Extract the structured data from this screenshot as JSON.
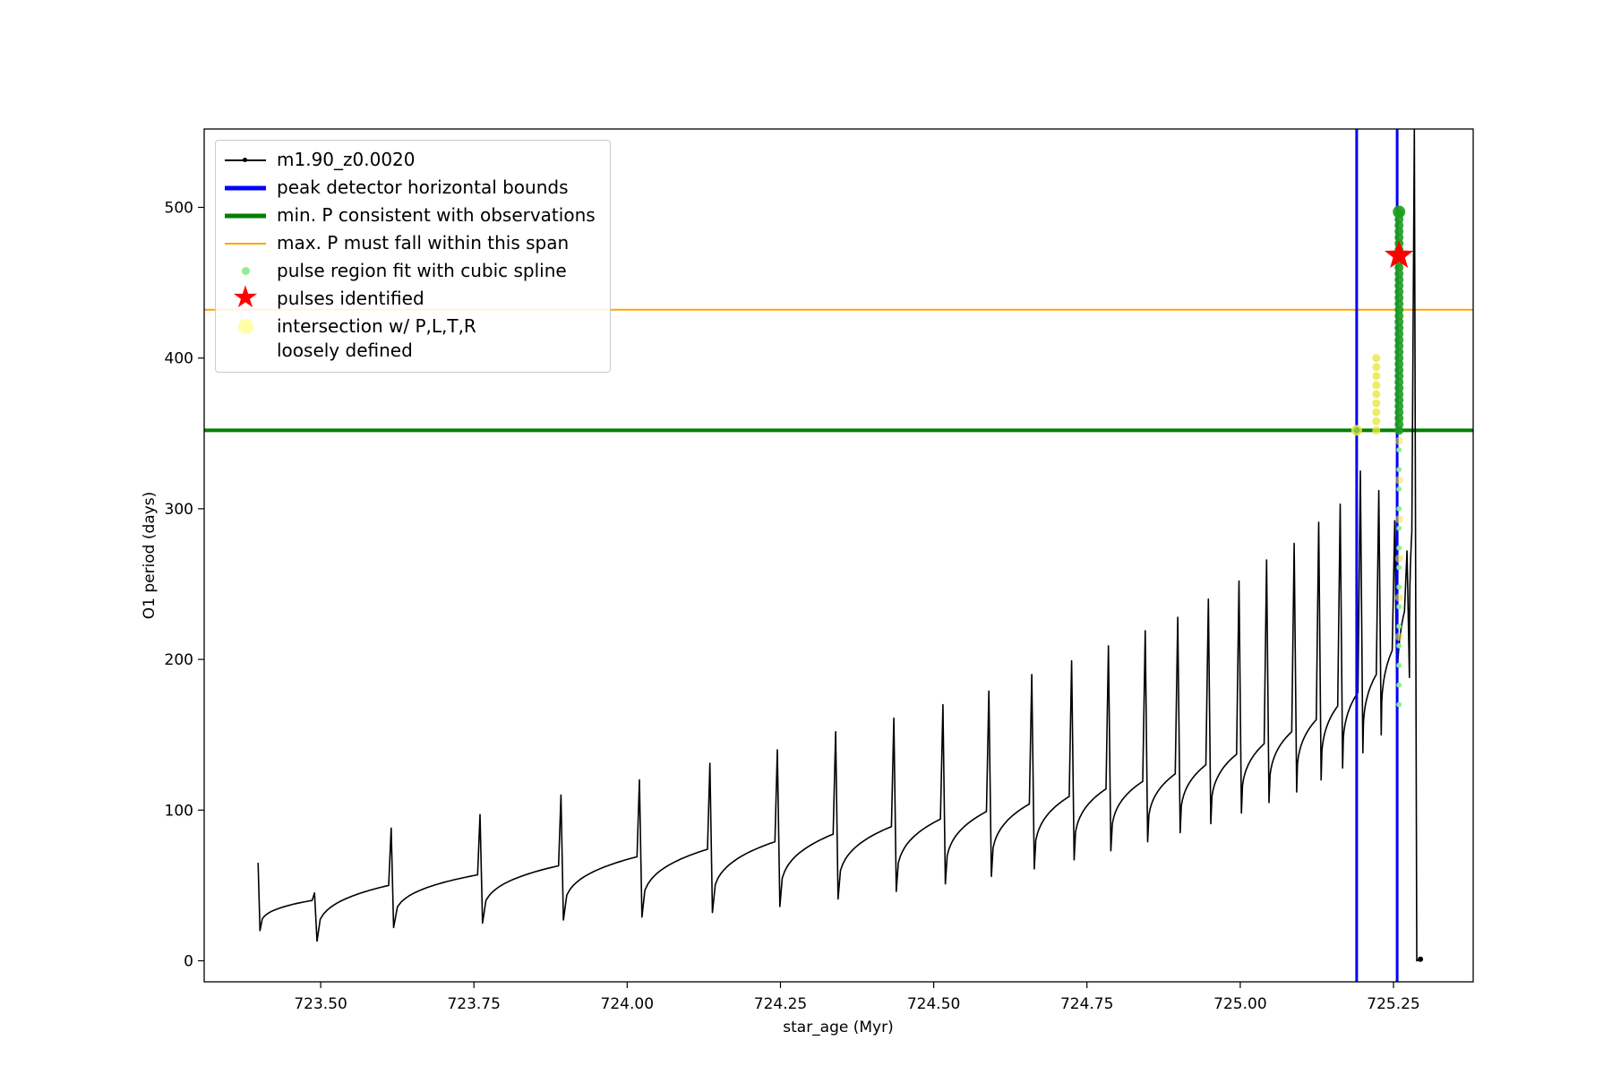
{
  "chart_data": {
    "type": "line",
    "title": "",
    "xlabel": "star_age (Myr)",
    "ylabel": "O1 period (days)",
    "xlim": [
      723.31,
      725.38
    ],
    "ylim": [
      -14,
      552
    ],
    "xticks": [
      "723.50",
      "723.75",
      "724.00",
      "724.25",
      "724.50",
      "724.75",
      "725.00",
      "725.25"
    ],
    "yticks": [
      "0",
      "100",
      "200",
      "300",
      "400",
      "500"
    ],
    "grid": false,
    "legend_position": "upper left",
    "series": [
      {
        "name": "m1.90_z0.0020",
        "color": "#000000",
        "description": "relaxation-oscillator pulse train: each pulse = [spike_x_Myr, period_before_spike, spike_peak, low_after_spike] in days",
        "start_point": {
          "x": 723.398,
          "y_top": 65,
          "y_low": 20
        },
        "pulses": [
          [
            723.49,
            40,
            45,
            13
          ],
          [
            723.615,
            50,
            88,
            22
          ],
          [
            723.76,
            57,
            97,
            25
          ],
          [
            723.892,
            63,
            110,
            27
          ],
          [
            724.02,
            69,
            120,
            29
          ],
          [
            724.135,
            74,
            131,
            32
          ],
          [
            724.245,
            79,
            140,
            36
          ],
          [
            724.34,
            84,
            152,
            41
          ],
          [
            724.435,
            89,
            161,
            46
          ],
          [
            724.515,
            94,
            170,
            51
          ],
          [
            724.59,
            99,
            179,
            56
          ],
          [
            724.66,
            104,
            190,
            61
          ],
          [
            724.725,
            109,
            199,
            67
          ],
          [
            724.785,
            114,
            209,
            73
          ],
          [
            724.845,
            119,
            219,
            79
          ],
          [
            724.898,
            124,
            228,
            85
          ],
          [
            724.948,
            130,
            240,
            91
          ],
          [
            724.998,
            137,
            252,
            98
          ],
          [
            725.043,
            144,
            266,
            105
          ],
          [
            725.088,
            152,
            277,
            112
          ],
          [
            725.128,
            160,
            291,
            120
          ],
          [
            725.163,
            169,
            303,
            128
          ],
          [
            725.196,
            178,
            325,
            138
          ],
          [
            725.226,
            190,
            312,
            150
          ],
          [
            725.252,
            206,
            292,
            165
          ],
          [
            725.272,
            232,
            272,
            188
          ],
          [
            725.284,
            285,
            552,
            0
          ]
        ],
        "tail": {
          "x": 725.294,
          "y": 1
        }
      }
    ],
    "hlines": [
      {
        "name": "max-p-span-line",
        "y": 432,
        "color": "#ffa500",
        "width": 2,
        "label": "max. P must fall within this span"
      },
      {
        "name": "min-p-observed-line",
        "y": 352,
        "color": "#008000",
        "width": 4,
        "label": "min. P consistent with observations"
      }
    ],
    "vlines": [
      {
        "name": "peak-detector-left-bound",
        "x": 725.19,
        "color": "#0000ff",
        "width": 3,
        "label": "peak detector horizontal bounds"
      },
      {
        "name": "peak-detector-right-bound",
        "x": 725.256,
        "color": "#0000ff",
        "width": 3,
        "label": "peak detector horizontal bounds"
      }
    ],
    "spline_fit": {
      "label": "pulse region fit with cubic spline",
      "x": 725.259,
      "dense": {
        "ymin": 352,
        "ymax": 497,
        "step": 4
      },
      "sparse": {
        "ymin": 170,
        "ymax": 348,
        "step": 13
      },
      "color_dense": "#1e9e1e",
      "color_sparse": "#90ee90"
    },
    "pulses_identified": [
      {
        "x": 725.259,
        "y": 468,
        "color": "#ff0000",
        "label": "pulses identified"
      }
    ],
    "intersections": {
      "label": "intersection w/ P,L,T,R loosely defined",
      "color": "#e8e83c",
      "column": {
        "x": 725.222,
        "ymin": 352,
        "ymax": 402,
        "step": 6
      },
      "points": [
        [
          725.19,
          352
        ]
      ],
      "sparse_on_spline": {
        "x": 725.259,
        "ymin": 215,
        "ymax": 345,
        "step": 26
      }
    },
    "legend": {
      "items": [
        {
          "label": "m1.90_z0.0020",
          "glyph": "line-dot",
          "color": "#000000"
        },
        {
          "label": "peak detector horizontal bounds",
          "glyph": "thick-line",
          "color": "#0000ff"
        },
        {
          "label": "min. P consistent with observations",
          "glyph": "thick-line",
          "color": "#008000"
        },
        {
          "label": "max. P must fall within this span",
          "glyph": "line",
          "color": "#ffa500"
        },
        {
          "label": "pulse region fit with cubic spline",
          "glyph": "small-dot",
          "color": "#90ee90"
        },
        {
          "label": "pulses identified",
          "glyph": "star",
          "color": "#ff0000"
        },
        {
          "label": "intersection w/ P,L,T,R\nloosely defined",
          "glyph": "big-dot",
          "color": "#ffffa8"
        }
      ]
    }
  }
}
